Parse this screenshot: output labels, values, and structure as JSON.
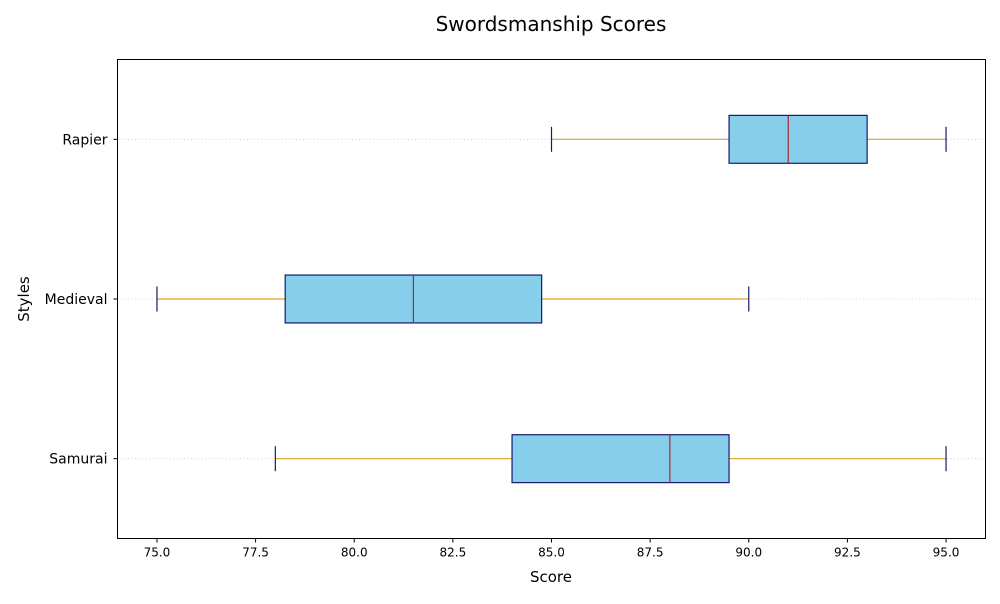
{
  "chart_data": {
    "type": "boxplot",
    "orientation": "horizontal",
    "title": "Swordsmanship Scores",
    "xlabel": "Score",
    "ylabel": "Styles",
    "xlim": [
      74.0,
      96.0
    ],
    "x_ticks": [
      "75.0",
      "77.5",
      "80.0",
      "82.5",
      "85.0",
      "87.5",
      "90.0",
      "92.5",
      "95.0"
    ],
    "x_tick_values": [
      75.0,
      77.5,
      80.0,
      82.5,
      85.0,
      87.5,
      90.0,
      92.5,
      95.0
    ],
    "categories": [
      "Samurai",
      "Medieval",
      "Rapier"
    ],
    "boxes": [
      {
        "name": "Samurai",
        "whisker_low": 78.0,
        "q1": 84.0,
        "median": 88.0,
        "q3": 89.5,
        "whisker_high": 95.0
      },
      {
        "name": "Medieval",
        "whisker_low": 75.0,
        "q1": 78.25,
        "median": 81.5,
        "q3": 84.75,
        "whisker_high": 90.0
      },
      {
        "name": "Rapier",
        "whisker_low": 85.0,
        "q1": 89.5,
        "median": 91.0,
        "q3": 93.0,
        "whisker_high": 95.0
      }
    ],
    "grid": {
      "y": true,
      "x": false
    },
    "colors": {
      "box_fill": "#87ceeb",
      "box_edge": "#191970",
      "median": "#a52a2a",
      "whisker": "#daa520",
      "cap": "#191970",
      "grid": "#cccccc"
    }
  }
}
